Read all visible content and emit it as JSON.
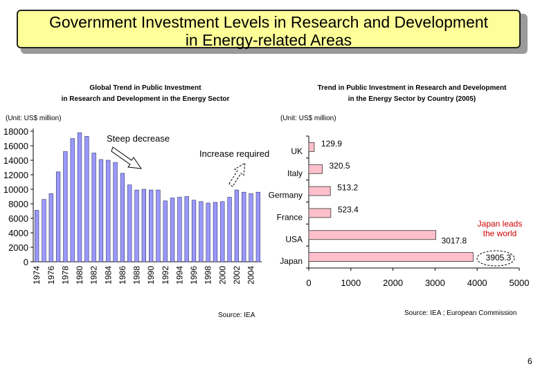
{
  "slide": {
    "title_line1": "Government Investment Levels in Research and Development",
    "title_line2": "in Energy-related Areas",
    "page_number": "6"
  },
  "left": {
    "subtitle_line1": "Global Trend in Public Investment",
    "subtitle_line2": "in Research and Development in the Energy Sector",
    "unit": "(Unit: US$ million)",
    "note_decrease": "Steep decrease",
    "note_increase": "Increase required",
    "source": "Source: IEA"
  },
  "right": {
    "subtitle_line1": "Trend in Public Investment in Research and Development",
    "subtitle_line2": "in the Energy Sector by Country (2005)",
    "unit": "(Unit: US$ million)",
    "annotation_line1": "Japan leads",
    "annotation_line2": "the world",
    "source": "Source: IEA ; European Commission"
  },
  "colors": {
    "title_bg": "#ffff99",
    "left_bar": "#9999ff",
    "right_bar": "#ffc0cb",
    "annotation": "#cc0000"
  },
  "chart_data": [
    {
      "type": "bar",
      "title": "Global Trend in Public Investment in Research and Development in the Energy Sector",
      "ylabel": "US$ million",
      "ylim": [
        0,
        18000
      ],
      "yticks": [
        "0",
        "2000",
        "4000",
        "6000",
        "8000",
        "10000",
        "12000",
        "14000",
        "16000",
        "18000"
      ],
      "categories": [
        "1974",
        "1975",
        "1976",
        "1977",
        "1978",
        "1979",
        "1980",
        "1981",
        "1982",
        "1983",
        "1984",
        "1985",
        "1986",
        "1987",
        "1988",
        "1989",
        "1990",
        "1991",
        "1992",
        "1993",
        "1994",
        "1995",
        "1996",
        "1997",
        "1998",
        "1999",
        "2000",
        "2001",
        "2002",
        "2003",
        "2004",
        "2005"
      ],
      "x_labels": [
        "1974",
        "1976",
        "1978",
        "1980",
        "1982",
        "1984",
        "1986",
        "1988",
        "1990",
        "1992",
        "1994",
        "1996",
        "1998",
        "2000",
        "2002",
        "2004"
      ],
      "values": [
        7100,
        8600,
        9400,
        12400,
        15200,
        17000,
        17800,
        17300,
        15000,
        14100,
        14000,
        13700,
        12200,
        10600,
        9900,
        10000,
        9900,
        9900,
        8400,
        8800,
        8900,
        9000,
        8500,
        8300,
        8100,
        8200,
        8300,
        8900,
        9900,
        9600,
        9400,
        9600
      ]
    },
    {
      "type": "bar",
      "orientation": "horizontal",
      "title": "Trend in Public Investment in Research and Development in the Energy Sector by Country (2005)",
      "xlim": [
        0,
        5000
      ],
      "xticks": [
        "0",
        "1000",
        "2000",
        "3000",
        "4000",
        "5000"
      ],
      "categories": [
        "UK",
        "Italy",
        "Germany",
        "France",
        "USA",
        "Japan"
      ],
      "values": [
        129.9,
        320.5,
        513.2,
        523.4,
        3017.8,
        3905.3
      ],
      "value_labels": [
        "129.9",
        "320.5",
        "513.2",
        "523.4",
        "3017.8",
        "3905.3"
      ]
    }
  ]
}
